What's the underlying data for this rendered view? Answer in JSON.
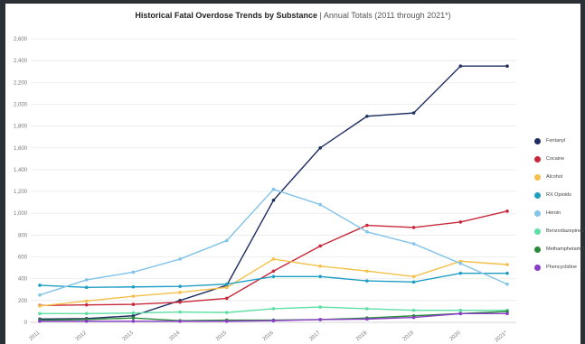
{
  "chart_data": {
    "type": "line",
    "title": "Historical Fatal Overdose Trends by Substance",
    "subtitle": "| Annual Totals (2011 through 2021*)",
    "x": [
      "2011",
      "2012",
      "2013",
      "2014",
      "2015",
      "2016",
      "2017",
      "2018",
      "2019",
      "2020",
      "2021*"
    ],
    "ylim": [
      0,
      2600
    ],
    "yticks": [
      "0",
      "200",
      "400",
      "600",
      "800",
      "1,000",
      "1,200",
      "1,400",
      "1,600",
      "1,800",
      "2,000",
      "2,200",
      "2,400",
      "2,600"
    ],
    "ytick_values": [
      0,
      200,
      400,
      600,
      800,
      1000,
      1200,
      1400,
      1600,
      1800,
      2000,
      2200,
      2400,
      2600
    ],
    "grid": "horizontal",
    "legend_position": "right",
    "series": [
      {
        "name": "Fentanyl",
        "color": "#1f2f63",
        "values": [
          30,
          35,
          60,
          200,
          340,
          1120,
          1600,
          1890,
          1920,
          2350,
          2350
        ]
      },
      {
        "name": "Cocaine",
        "color": "#c8283a",
        "values": [
          155,
          160,
          165,
          185,
          220,
          470,
          700,
          890,
          870,
          920,
          1020
        ]
      },
      {
        "name": "Alcohol",
        "color": "#f4c04a",
        "values": [
          150,
          195,
          240,
          275,
          320,
          580,
          515,
          470,
          420,
          560,
          530
        ]
      },
      {
        "name": "RX Opioids",
        "color": "#1e9ec4",
        "values": [
          340,
          320,
          325,
          330,
          350,
          420,
          420,
          380,
          370,
          450,
          450
        ]
      },
      {
        "name": "Heroin",
        "color": "#82c3ea",
        "values": [
          250,
          390,
          460,
          580,
          750,
          1220,
          1080,
          830,
          720,
          540,
          350
        ]
      },
      {
        "name": "Benzodiazepines",
        "color": "#5ee0a4",
        "values": [
          80,
          80,
          85,
          95,
          90,
          125,
          140,
          125,
          110,
          110,
          110
        ]
      },
      {
        "name": "Methamphetamine",
        "color": "#2a8a3a",
        "values": [
          20,
          25,
          40,
          15,
          20,
          20,
          25,
          40,
          60,
          80,
          100
        ]
      },
      {
        "name": "Phencyclidine",
        "color": "#8a3bc7",
        "values": [
          10,
          10,
          10,
          10,
          10,
          15,
          25,
          30,
          45,
          80,
          80
        ]
      }
    ]
  }
}
